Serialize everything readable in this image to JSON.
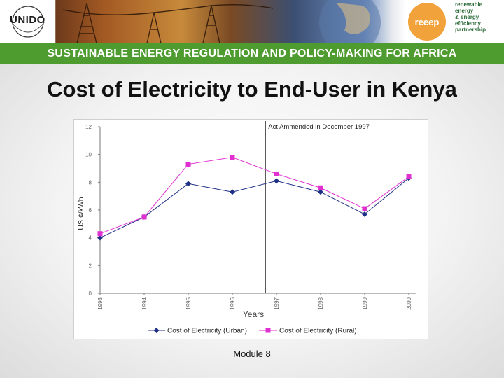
{
  "banner": {
    "logo_text": "UNIDO",
    "reeep_label": "reeep",
    "reeep_tagline": [
      "renewable",
      "energy",
      "& energy",
      "efficiency",
      "partnership"
    ]
  },
  "strip": {
    "text": "SUSTAINABLE ENERGY REGULATION AND POLICY-MAKING FOR AFRICA"
  },
  "title": "Cost of Electricity to End-User in Kenya",
  "footer": "Module 8",
  "chart_data": {
    "type": "line",
    "x": [
      "1993",
      "1994",
      "1995",
      "1996",
      "1997",
      "1998",
      "1999",
      "2000"
    ],
    "series": [
      {
        "name": "Cost of Electricity (Urban)",
        "values": [
          4.0,
          5.5,
          7.9,
          7.3,
          8.1,
          7.3,
          5.7,
          8.3
        ],
        "color": "#1f2f86",
        "marker": "diamond"
      },
      {
        "name": "Cost of Electricity (Rural)",
        "values": [
          4.3,
          5.5,
          9.3,
          9.8,
          8.6,
          7.6,
          6.1,
          8.4
        ],
        "color": "#e030d0",
        "marker": "square"
      }
    ],
    "xlabel": "Years",
    "ylabel": "US ¢/kWh",
    "ylim": [
      0,
      12
    ],
    "yticks": [
      "0",
      "2",
      "4",
      "6",
      "8",
      "10",
      "12"
    ],
    "annotation": {
      "text": "Act Ammended in December 1997",
      "at_x": 3.75
    },
    "grid": false,
    "legend": "bottom"
  }
}
